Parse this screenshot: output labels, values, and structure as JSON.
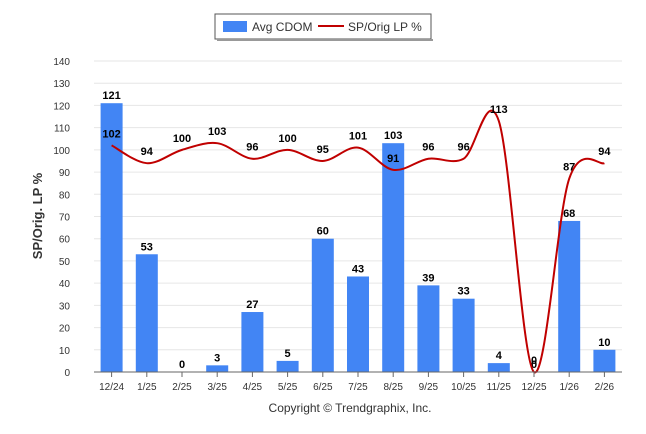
{
  "chart_data": {
    "type": "bar",
    "categories": [
      "12/24",
      "1/25",
      "2/25",
      "3/25",
      "4/25",
      "5/25",
      "6/25",
      "7/25",
      "8/25",
      "9/25",
      "10/25",
      "11/25",
      "12/25",
      "1/26",
      "2/26"
    ],
    "series": [
      {
        "name": "Avg CDOM",
        "type": "bar",
        "color": "#4285f4",
        "values": [
          121,
          53,
          0,
          3,
          27,
          5,
          60,
          43,
          103,
          39,
          33,
          4,
          0,
          68,
          10
        ]
      },
      {
        "name": "SP/Orig LP %",
        "type": "line",
        "color": "#c00000",
        "values": [
          102,
          94,
          100,
          103,
          96,
          100,
          95,
          101,
          91,
          96,
          96,
          113,
          0,
          87,
          94
        ]
      }
    ],
    "ylabel": "SP/Orig. LP %",
    "ylim": [
      0,
      140
    ],
    "yticks": [
      "0",
      "10",
      "20",
      "30",
      "40",
      "50",
      "60",
      "70",
      "80",
      "90",
      "100",
      "110",
      "120",
      "130",
      "140"
    ],
    "grid": true,
    "legend_position": "top-center"
  },
  "footer": {
    "copyright": "Copyright © Trendgraphix, Inc."
  }
}
